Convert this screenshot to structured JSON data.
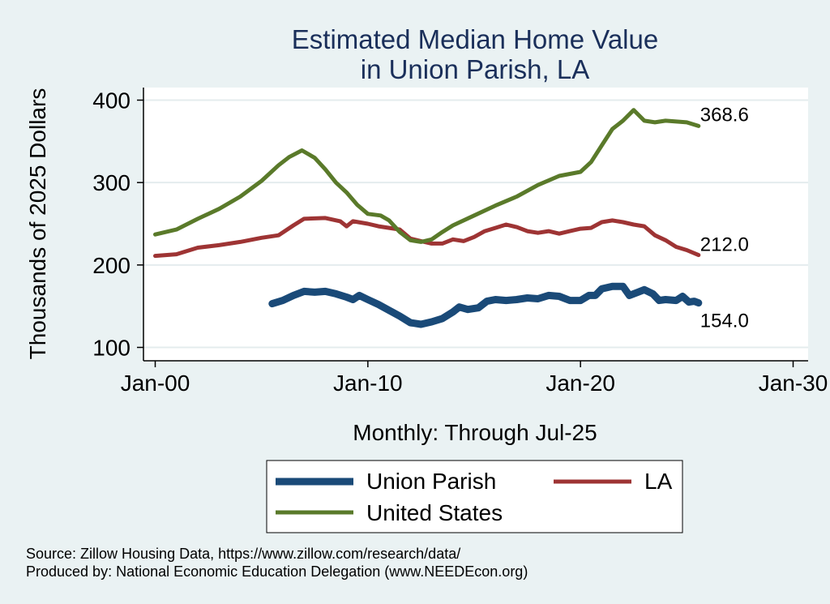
{
  "chart_data": {
    "type": "line",
    "title": [
      "Estimated Median Home Value",
      "in Union Parish, LA"
    ],
    "ylabel": "Thousands of 2025 Dollars",
    "xlabel": "Monthly: Through Jul-25",
    "xlim": [
      2000.0,
      2030.0
    ],
    "ylim": [
      100,
      400
    ],
    "xticks": [
      {
        "value": 2000,
        "label": "Jan-00"
      },
      {
        "value": 2010,
        "label": "Jan-10"
      },
      {
        "value": 2020,
        "label": "Jan-20"
      },
      {
        "value": 2030,
        "label": "Jan-30"
      }
    ],
    "yticks": [
      100,
      200,
      300,
      400
    ],
    "grid": true,
    "series": [
      {
        "name": "Union Parish",
        "color": "#1a4a78",
        "end_label": "154.0",
        "points": [
          [
            2005.5,
            153
          ],
          [
            2006.0,
            157
          ],
          [
            2006.5,
            163
          ],
          [
            2007.0,
            168
          ],
          [
            2007.5,
            167
          ],
          [
            2008.0,
            168
          ],
          [
            2008.5,
            165
          ],
          [
            2009.0,
            161
          ],
          [
            2009.3,
            158
          ],
          [
            2009.6,
            163
          ],
          [
            2010.0,
            158
          ],
          [
            2010.5,
            152
          ],
          [
            2011.0,
            145
          ],
          [
            2011.5,
            138
          ],
          [
            2012.0,
            130
          ],
          [
            2012.5,
            128
          ],
          [
            2013.0,
            131
          ],
          [
            2013.5,
            135
          ],
          [
            2014.0,
            143
          ],
          [
            2014.3,
            149
          ],
          [
            2014.7,
            146
          ],
          [
            2015.2,
            148
          ],
          [
            2015.6,
            156
          ],
          [
            2016.0,
            158
          ],
          [
            2016.5,
            157
          ],
          [
            2017.0,
            158
          ],
          [
            2017.5,
            160
          ],
          [
            2018.0,
            159
          ],
          [
            2018.5,
            163
          ],
          [
            2019.0,
            162
          ],
          [
            2019.5,
            157
          ],
          [
            2020.0,
            157
          ],
          [
            2020.4,
            163
          ],
          [
            2020.7,
            163
          ],
          [
            2021.0,
            171
          ],
          [
            2021.5,
            174
          ],
          [
            2022.0,
            174
          ],
          [
            2022.3,
            163
          ],
          [
            2022.7,
            167
          ],
          [
            2023.0,
            170
          ],
          [
            2023.4,
            165
          ],
          [
            2023.7,
            157
          ],
          [
            2024.0,
            158
          ],
          [
            2024.5,
            157
          ],
          [
            2024.8,
            162
          ],
          [
            2025.1,
            155
          ],
          [
            2025.35,
            156
          ],
          [
            2025.55,
            154
          ]
        ]
      },
      {
        "name": "LA",
        "color": "#9e3434",
        "end_label": "212.0",
        "points": [
          [
            2000.0,
            211
          ],
          [
            2001.0,
            213
          ],
          [
            2002.0,
            221
          ],
          [
            2003.0,
            224
          ],
          [
            2004.0,
            228
          ],
          [
            2005.0,
            233
          ],
          [
            2005.8,
            236
          ],
          [
            2006.5,
            248
          ],
          [
            2007.0,
            256
          ],
          [
            2008.0,
            257
          ],
          [
            2008.7,
            253
          ],
          [
            2009.0,
            247
          ],
          [
            2009.3,
            253
          ],
          [
            2010.0,
            250
          ],
          [
            2010.5,
            247
          ],
          [
            2011.0,
            245
          ],
          [
            2011.5,
            243
          ],
          [
            2012.0,
            232
          ],
          [
            2012.5,
            229
          ],
          [
            2013.0,
            226
          ],
          [
            2013.5,
            226
          ],
          [
            2014.0,
            231
          ],
          [
            2014.5,
            229
          ],
          [
            2015.0,
            234
          ],
          [
            2015.5,
            241
          ],
          [
            2016.0,
            245
          ],
          [
            2016.5,
            249
          ],
          [
            2017.0,
            246
          ],
          [
            2017.5,
            241
          ],
          [
            2018.0,
            239
          ],
          [
            2018.5,
            241
          ],
          [
            2019.0,
            238
          ],
          [
            2019.5,
            241
          ],
          [
            2020.0,
            244
          ],
          [
            2020.5,
            245
          ],
          [
            2021.0,
            252
          ],
          [
            2021.5,
            254
          ],
          [
            2022.0,
            252
          ],
          [
            2022.5,
            249
          ],
          [
            2023.0,
            247
          ],
          [
            2023.5,
            236
          ],
          [
            2024.0,
            230
          ],
          [
            2024.5,
            222
          ],
          [
            2025.0,
            218
          ],
          [
            2025.55,
            212
          ]
        ]
      },
      {
        "name": "United States",
        "color": "#5a7a2a",
        "end_label": "368.6",
        "points": [
          [
            2000.0,
            237
          ],
          [
            2001.0,
            243
          ],
          [
            2002.0,
            256
          ],
          [
            2003.0,
            268
          ],
          [
            2004.0,
            283
          ],
          [
            2005.0,
            302
          ],
          [
            2005.8,
            321
          ],
          [
            2006.3,
            331
          ],
          [
            2006.9,
            339
          ],
          [
            2007.5,
            330
          ],
          [
            2008.0,
            316
          ],
          [
            2008.5,
            300
          ],
          [
            2009.0,
            288
          ],
          [
            2009.5,
            273
          ],
          [
            2010.0,
            262
          ],
          [
            2010.6,
            260
          ],
          [
            2011.0,
            254
          ],
          [
            2011.5,
            240
          ],
          [
            2012.0,
            230
          ],
          [
            2012.5,
            228
          ],
          [
            2013.0,
            231
          ],
          [
            2013.5,
            240
          ],
          [
            2014.0,
            248
          ],
          [
            2015.0,
            260
          ],
          [
            2016.0,
            272
          ],
          [
            2017.0,
            283
          ],
          [
            2018.0,
            297
          ],
          [
            2019.0,
            308
          ],
          [
            2020.0,
            313
          ],
          [
            2020.5,
            325
          ],
          [
            2021.0,
            345
          ],
          [
            2021.5,
            365
          ],
          [
            2022.0,
            375
          ],
          [
            2022.5,
            388
          ],
          [
            2023.0,
            375
          ],
          [
            2023.5,
            373
          ],
          [
            2024.0,
            375
          ],
          [
            2024.5,
            374
          ],
          [
            2025.0,
            373
          ],
          [
            2025.55,
            368.6
          ]
        ]
      }
    ],
    "legend": {
      "position": "bottom",
      "entries": [
        "Union Parish",
        "LA",
        "United States"
      ]
    }
  },
  "source_lines": [
    "Source: Zillow Housing Data, https://www.zillow.com/research/data/",
    "Produced by: National Economic Education Delegation (www.NEEDEcon.org)"
  ]
}
